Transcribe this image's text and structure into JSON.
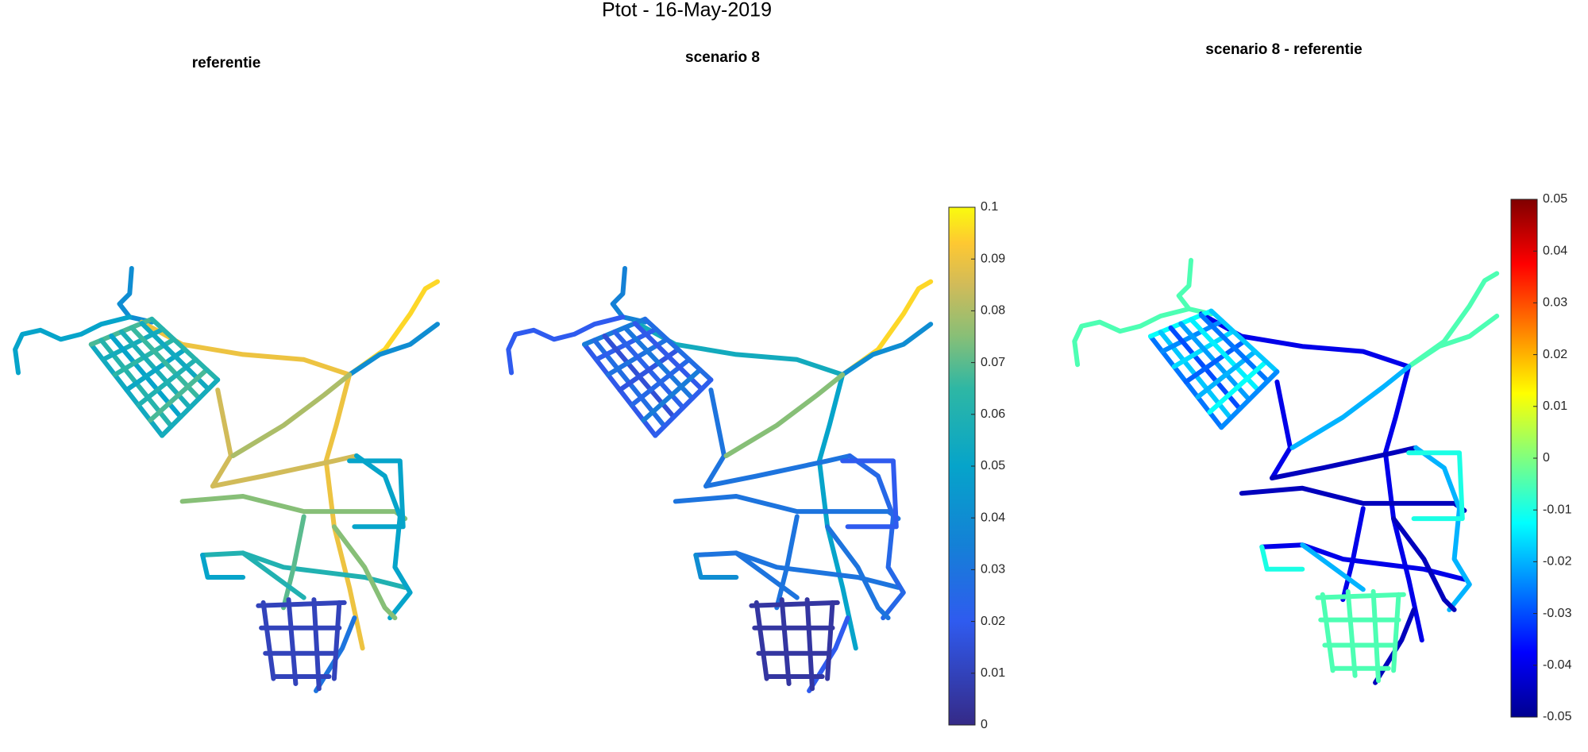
{
  "title": "Ptot - 16-May-2019",
  "chart_data": [
    {
      "type": "map",
      "title": "referentie"
    },
    {
      "type": "map",
      "title": "scenario 8",
      "colorbar": {
        "colormap": "parula",
        "clim": [
          0,
          0.1
        ],
        "ticks": [
          0,
          0.01,
          0.02,
          0.03,
          0.04,
          0.05,
          0.06,
          0.07,
          0.08,
          0.09,
          0.1
        ]
      }
    },
    {
      "type": "map",
      "title": "scenario 8 - referentie",
      "colorbar": {
        "colormap": "jet",
        "clim": [
          -0.05,
          0.05
        ],
        "ticks": [
          -0.05,
          -0.04,
          -0.03,
          -0.02,
          -0.01,
          0,
          0.01,
          0.02,
          0.03,
          0.04,
          0.05
        ]
      }
    }
  ]
}
